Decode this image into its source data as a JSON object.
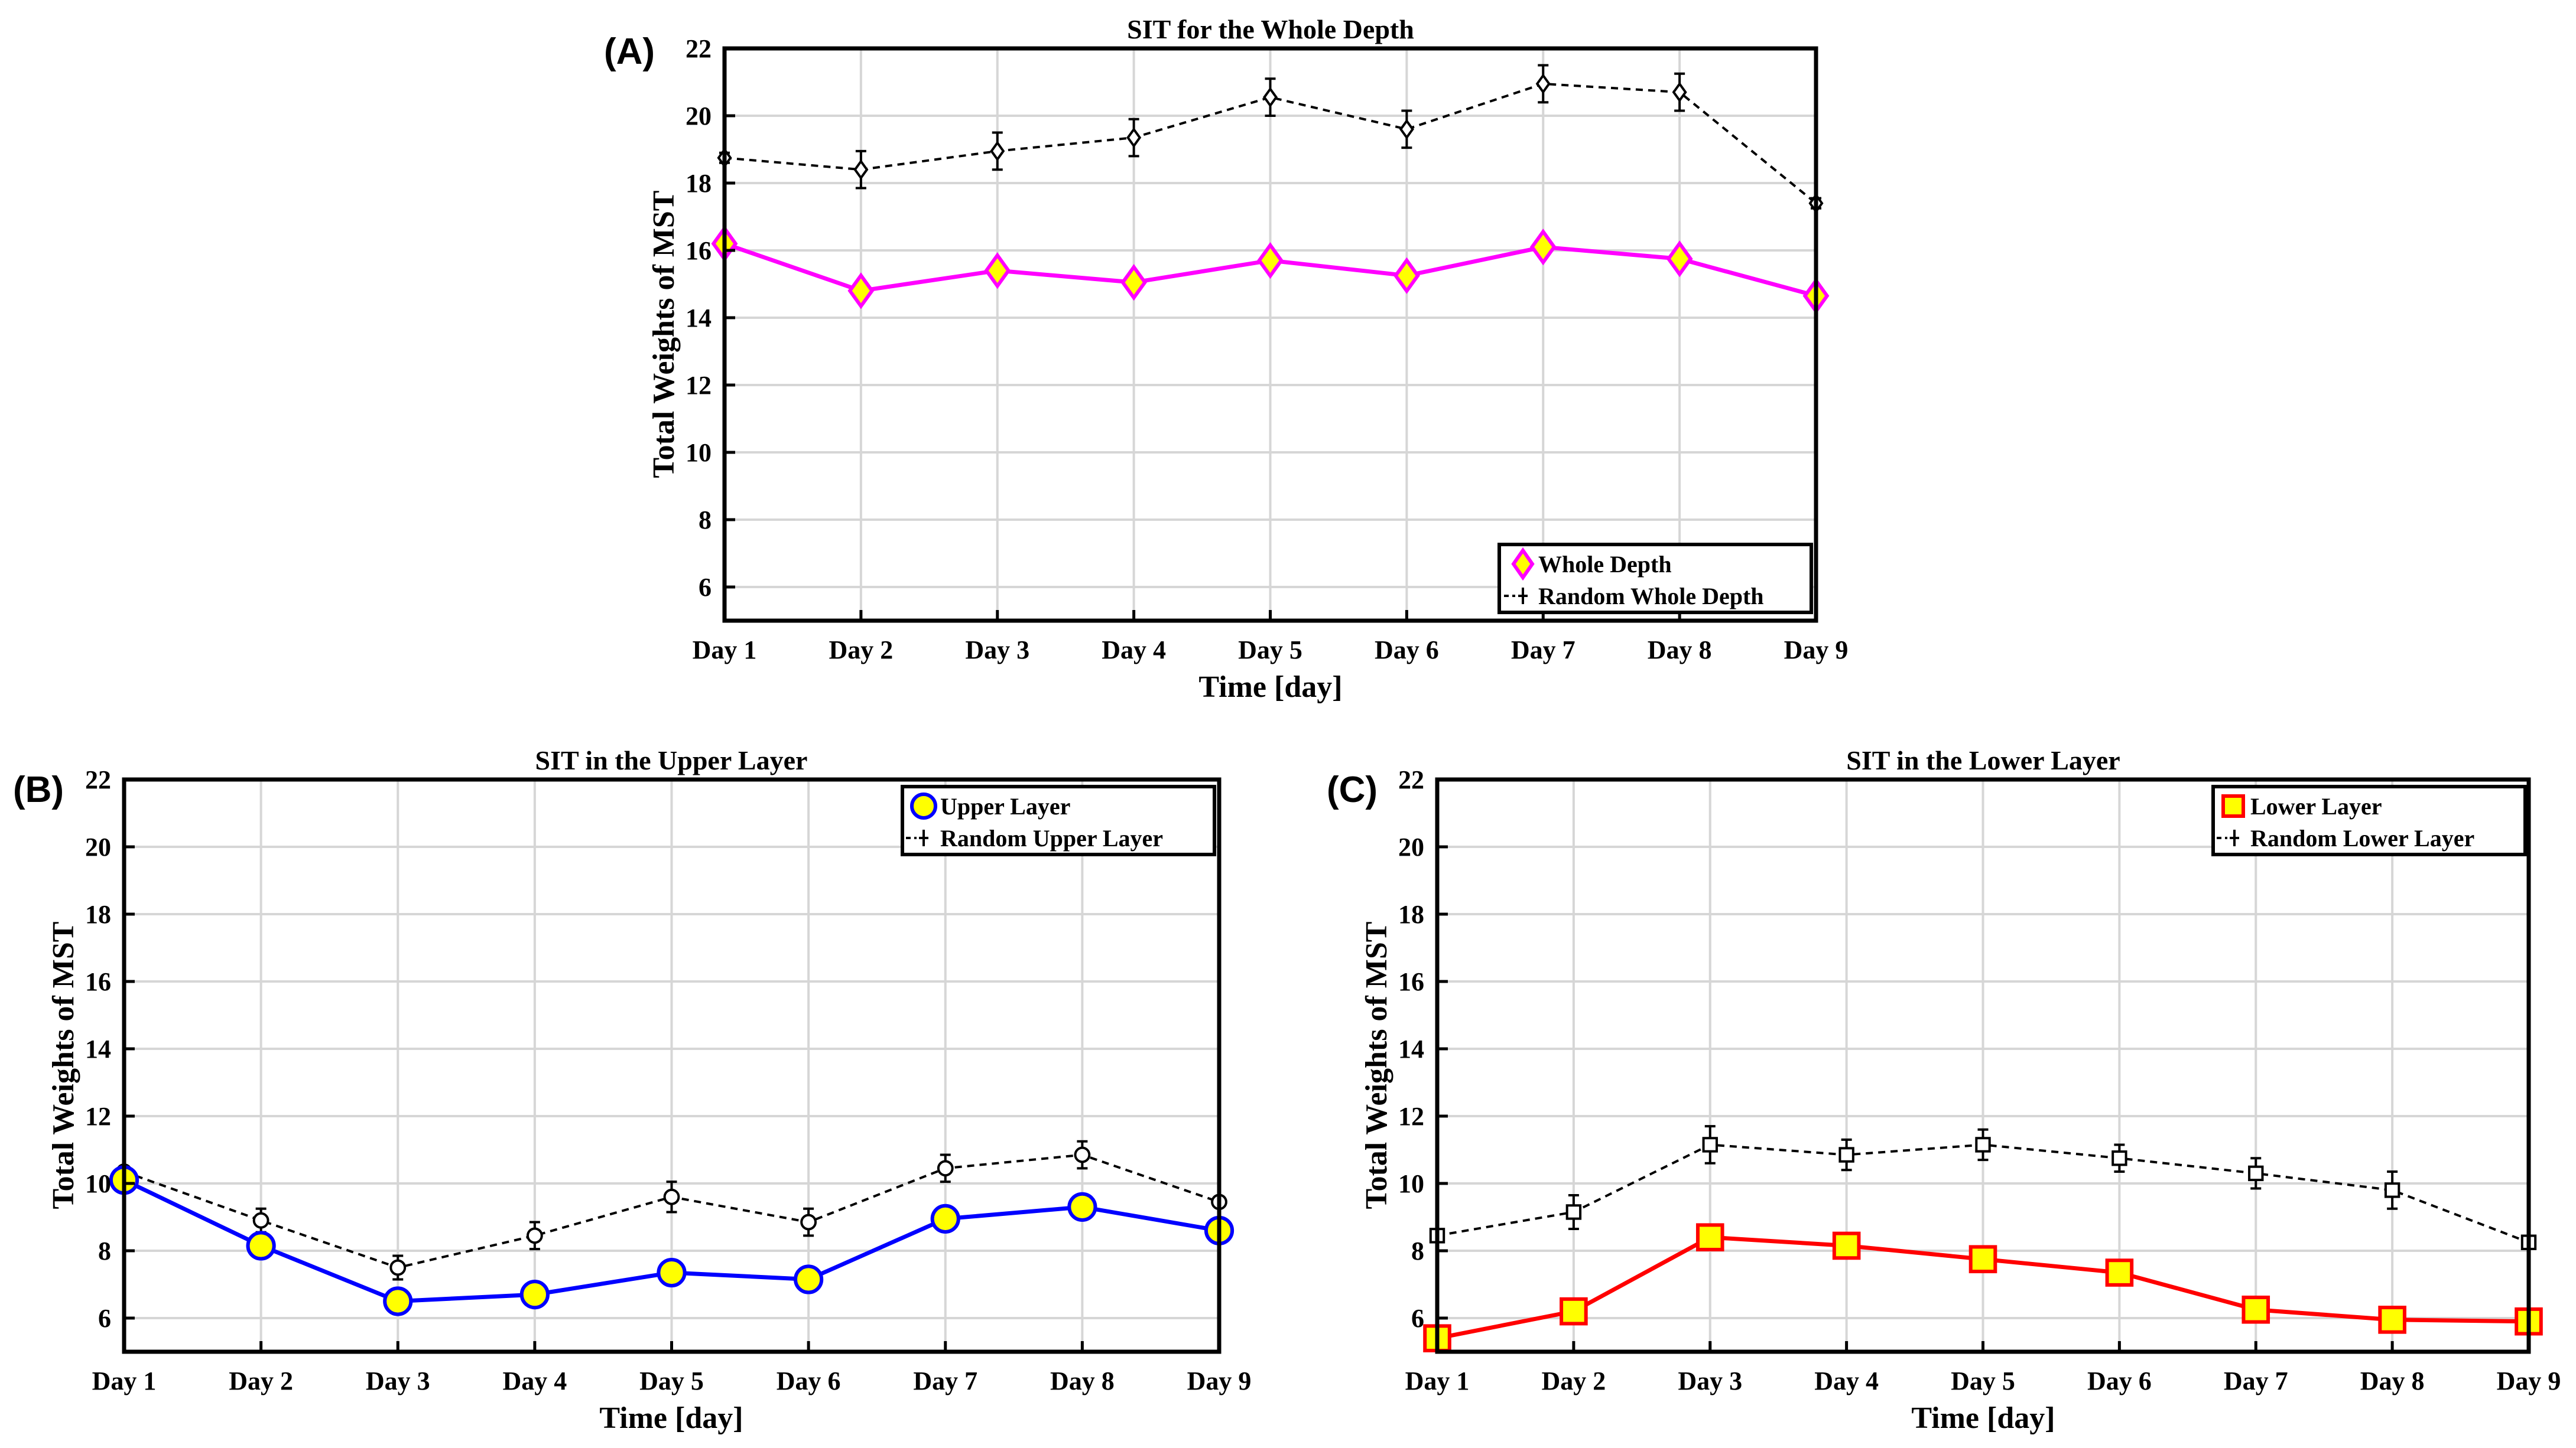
{
  "chart_data": [
    {
      "id": "A",
      "type": "line",
      "panel_label": "(A)",
      "title": "SIT for the Whole Depth",
      "xlabel": "Time [day]",
      "ylabel": "Total Weights of MST",
      "categories": [
        "Day 1",
        "Day 2",
        "Day 3",
        "Day 4",
        "Day 5",
        "Day 6",
        "Day 7",
        "Day 8",
        "Day 9"
      ],
      "ylim": [
        5,
        22
      ],
      "yticks": [
        6,
        8,
        10,
        12,
        14,
        16,
        18,
        20,
        22
      ],
      "grid": true,
      "legend_position": "bottom-right",
      "series": [
        {
          "name": "Whole Depth",
          "style": "solid",
          "marker": "diamond",
          "line_color": "#ff00ff",
          "marker_face": "#ffff00",
          "marker_edge": "#ff00ff",
          "values": [
            16.2,
            14.8,
            15.4,
            15.05,
            15.7,
            15.25,
            16.1,
            15.75,
            14.65
          ]
        },
        {
          "name": "Random Whole Depth",
          "style": "dashed",
          "marker": "diamond",
          "line_color": "#000000",
          "marker_face": "#ffffff",
          "marker_edge": "#000000",
          "values": [
            18.75,
            18.4,
            18.95,
            19.35,
            20.55,
            19.6,
            20.95,
            20.7,
            17.4
          ],
          "errors": [
            0.15,
            0.55,
            0.55,
            0.55,
            0.55,
            0.55,
            0.55,
            0.55,
            0.15
          ]
        }
      ]
    },
    {
      "id": "B",
      "type": "line",
      "panel_label": "(B)",
      "title": "SIT in the Upper Layer",
      "xlabel": "Time [day]",
      "ylabel": "Total Weights of MST",
      "categories": [
        "Day 1",
        "Day 2",
        "Day 3",
        "Day 4",
        "Day 5",
        "Day 6",
        "Day 7",
        "Day 8",
        "Day 9"
      ],
      "ylim": [
        5,
        22
      ],
      "yticks": [
        6,
        8,
        10,
        12,
        14,
        16,
        18,
        20,
        22
      ],
      "grid": true,
      "legend_position": "top-right",
      "series": [
        {
          "name": "Upper Layer",
          "style": "solid",
          "marker": "circle",
          "line_color": "#0000ff",
          "marker_face": "#ffff00",
          "marker_edge": "#0000ff",
          "values": [
            10.1,
            8.15,
            6.5,
            6.7,
            7.35,
            7.15,
            8.95,
            9.3,
            8.6
          ]
        },
        {
          "name": "Random Upper Layer",
          "style": "dashed",
          "marker": "circle",
          "line_color": "#000000",
          "marker_face": "#ffffff",
          "marker_edge": "#000000",
          "values": [
            10.35,
            8.9,
            7.5,
            8.45,
            9.6,
            8.85,
            10.45,
            10.85,
            9.45
          ],
          "errors": [
            0.15,
            0.35,
            0.35,
            0.4,
            0.45,
            0.4,
            0.4,
            0.4,
            0.15
          ]
        }
      ]
    },
    {
      "id": "C",
      "type": "line",
      "panel_label": "(C)",
      "title": "SIT in the Lower Layer",
      "xlabel": "Time [day]",
      "ylabel": "Total Weights of MST",
      "categories": [
        "Day 1",
        "Day 2",
        "Day 3",
        "Day 4",
        "Day 5",
        "Day 6",
        "Day 7",
        "Day 8",
        "Day 9"
      ],
      "ylim": [
        5,
        22
      ],
      "yticks": [
        6,
        8,
        10,
        12,
        14,
        16,
        18,
        20,
        22
      ],
      "grid": true,
      "legend_position": "top-right",
      "series": [
        {
          "name": "Lower Layer",
          "style": "solid",
          "marker": "square",
          "line_color": "#ff0000",
          "marker_face": "#ffff00",
          "marker_edge": "#ff0000",
          "values": [
            5.4,
            6.2,
            8.4,
            8.15,
            7.75,
            7.35,
            6.25,
            5.95,
            5.9
          ]
        },
        {
          "name": "Random Lower Layer",
          "style": "dashed",
          "marker": "square",
          "line_color": "#000000",
          "marker_face": "#ffffff",
          "marker_edge": "#000000",
          "values": [
            8.45,
            9.15,
            11.15,
            10.85,
            11.15,
            10.75,
            10.3,
            9.8,
            8.25
          ],
          "errors": [
            0.15,
            0.5,
            0.55,
            0.45,
            0.45,
            0.4,
            0.45,
            0.55,
            0.15
          ]
        }
      ]
    }
  ]
}
